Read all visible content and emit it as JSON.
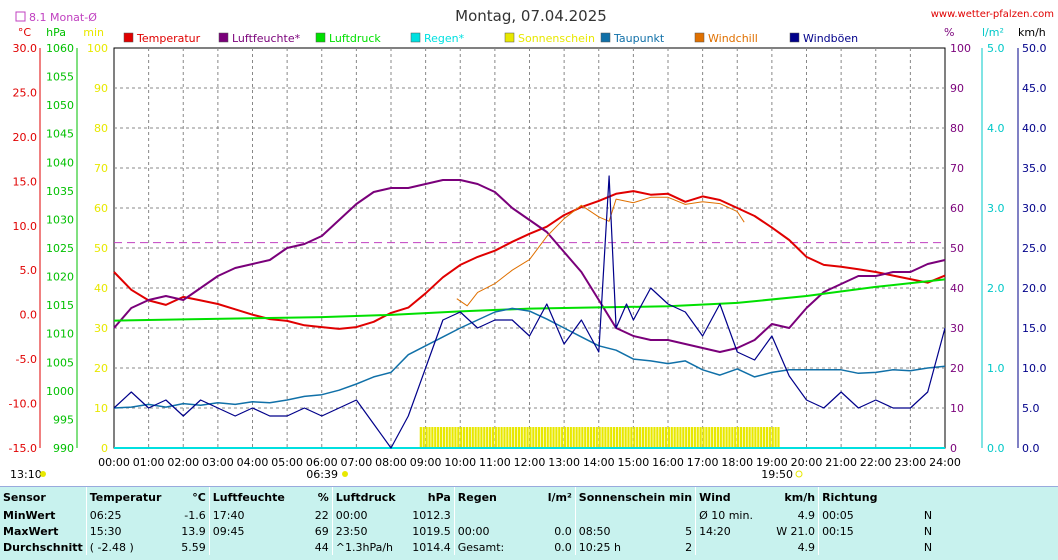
{
  "header": {
    "title": "Montag, 07.04.2025",
    "site": "www.wetter-pfalzen.com",
    "avg_label": "8.1 Monat-Ø",
    "time_left": "13:10",
    "sunrise": "06:39",
    "sunset": "19:50"
  },
  "axes": {
    "left_units": [
      "°C",
      "hPa",
      "min"
    ],
    "right_units": [
      "%",
      "l/m²",
      "km/h"
    ],
    "temp_ticks": [
      "30.0",
      "25.0",
      "20.0",
      "15.0",
      "10.0",
      "5.0",
      "0.0",
      "-5.0",
      "-10.0",
      "-15.0"
    ],
    "hpa_ticks": [
      "1060",
      "1055",
      "1050",
      "1045",
      "1040",
      "1035",
      "1030",
      "1025",
      "1020",
      "1015",
      "1010",
      "1005",
      "1000",
      "995",
      "990"
    ],
    "min_ticks": [
      "100",
      "90",
      "80",
      "70",
      "60",
      "50",
      "40",
      "30",
      "20",
      "10",
      "0"
    ],
    "pct_ticks": [
      "100",
      "90",
      "80",
      "70",
      "60",
      "50",
      "40",
      "30",
      "20",
      "10",
      "0"
    ],
    "rain_ticks": [
      "5.0",
      "4.0",
      "3.0",
      "2.0",
      "1.0",
      "0.0"
    ],
    "wind_ticks": [
      "50.0",
      "45.0",
      "40.0",
      "35.0",
      "30.0",
      "25.0",
      "20.0",
      "15.0",
      "10.0",
      "5.0",
      "0.0"
    ],
    "time_ticks": [
      "00:00",
      "01:00",
      "02:00",
      "03:00",
      "04:00",
      "05:00",
      "06:00",
      "07:00",
      "08:00",
      "09:00",
      "10:00",
      "11:00",
      "12:00",
      "13:00",
      "14:00",
      "15:00",
      "16:00",
      "17:00",
      "18:00",
      "19:00",
      "20:00",
      "21:00",
      "22:00",
      "23:00",
      "24:00"
    ]
  },
  "legend": [
    {
      "label": "Temperatur",
      "color": "#e00000"
    },
    {
      "label": "Luftfeuchte*",
      "color": "#7a007a"
    },
    {
      "label": "Luftdruck",
      "color": "#00e000"
    },
    {
      "label": "Regen*",
      "color": "#00e0e0"
    },
    {
      "label": "Sonnenschein",
      "color": "#e8e800"
    },
    {
      "label": "Taupunkt",
      "color": "#1070a8"
    },
    {
      "label": "Windchill",
      "color": "#e07000"
    },
    {
      "label": "Windböen",
      "color": "#00008a"
    }
  ],
  "chart_data": {
    "type": "line",
    "title": "Montag, 07.04.2025",
    "x_unit": "hour of day",
    "xlim": [
      0,
      24
    ],
    "temp_ylim": [
      -15,
      30
    ],
    "month_avg_temp": 8.1,
    "series": [
      {
        "name": "Temperatur",
        "unit": "°C",
        "color": "#e00000",
        "x": [
          0,
          0.5,
          1,
          1.5,
          2,
          2.5,
          3,
          3.5,
          4,
          4.5,
          5,
          5.5,
          6,
          6.5,
          7,
          7.5,
          8,
          8.5,
          9,
          9.5,
          10,
          10.5,
          11,
          11.5,
          12,
          12.5,
          13,
          13.5,
          14,
          14.5,
          15,
          15.5,
          16,
          16.5,
          17,
          17.5,
          18,
          18.5,
          19,
          19.5,
          20,
          20.5,
          21,
          21.5,
          22,
          22.5,
          23,
          23.5,
          24
        ],
        "y": [
          4.8,
          2.8,
          1.6,
          1.1,
          2.0,
          1.6,
          1.2,
          0.6,
          0.0,
          -0.5,
          -0.7,
          -1.2,
          -1.4,
          -1.6,
          -1.4,
          -0.8,
          0.2,
          0.8,
          2.4,
          4.2,
          5.6,
          6.5,
          7.2,
          8.2,
          9.1,
          9.9,
          11.2,
          12.1,
          12.8,
          13.6,
          13.9,
          13.5,
          13.6,
          12.7,
          13.3,
          12.9,
          12.0,
          11.1,
          9.8,
          8.4,
          6.5,
          5.6,
          5.4,
          5.1,
          4.8,
          4.4,
          4.0,
          3.6,
          4.4
        ]
      },
      {
        "name": "Luftfeuchte*",
        "unit": "%",
        "color": "#7a007a",
        "x": [
          0,
          0.5,
          1,
          1.5,
          2,
          2.5,
          3,
          3.5,
          4,
          4.5,
          5,
          5.5,
          6,
          6.5,
          7,
          7.5,
          8,
          8.5,
          9,
          9.5,
          10,
          10.5,
          11,
          11.5,
          12,
          12.5,
          13,
          13.5,
          14,
          14.5,
          15,
          15.5,
          16,
          16.5,
          17,
          17.5,
          18,
          18.5,
          19,
          19.5,
          20,
          20.5,
          21,
          21.5,
          22,
          22.5,
          23,
          23.5,
          24
        ],
        "y": [
          30,
          35,
          37,
          38,
          37,
          40,
          43,
          45,
          46,
          47,
          50,
          51,
          53,
          57,
          61,
          64,
          65,
          65,
          66,
          67,
          67,
          66,
          64,
          60,
          57,
          54,
          49,
          44,
          37,
          30,
          28,
          27,
          27,
          26,
          25,
          24,
          25,
          27,
          31,
          30,
          35,
          39,
          41,
          43,
          43,
          44,
          44,
          46,
          47
        ]
      },
      {
        "name": "Luftdruck",
        "unit": "hPa",
        "color": "#00e000",
        "x": [
          0,
          2,
          4,
          6,
          8,
          10,
          12,
          14,
          16,
          18,
          20,
          22,
          24
        ],
        "y": [
          1012.3,
          1012.5,
          1012.7,
          1012.9,
          1013.3,
          1013.9,
          1014.4,
          1014.6,
          1014.8,
          1015.4,
          1016.6,
          1018.2,
          1019.5
        ]
      },
      {
        "name": "Regen*",
        "unit": "l/m²",
        "color": "#00e0e0",
        "x": [
          0,
          24
        ],
        "y": [
          0.0,
          0.0
        ]
      },
      {
        "name": "Taupunkt",
        "unit": "°C",
        "color": "#1070a8",
        "x": [
          0,
          0.5,
          1,
          1.5,
          2,
          2.5,
          3,
          3.5,
          4,
          4.5,
          5,
          5.5,
          6,
          6.5,
          7,
          7.5,
          8,
          8.5,
          9,
          9.5,
          10,
          10.5,
          11,
          11.5,
          12,
          12.5,
          13,
          13.5,
          14,
          14.5,
          15,
          15.5,
          16,
          16.5,
          17,
          17.5,
          18,
          18.5,
          19,
          19.5,
          20,
          20.5,
          21,
          21.5,
          22,
          22.5,
          23,
          23.5,
          24
        ],
        "y": [
          -10.5,
          -10.4,
          -10.1,
          -10.4,
          -10.0,
          -10.2,
          -9.9,
          -10.1,
          -9.8,
          -9.9,
          -9.6,
          -9.2,
          -9.0,
          -8.5,
          -7.8,
          -7.0,
          -6.5,
          -4.5,
          -3.5,
          -2.5,
          -1.5,
          -0.6,
          0.3,
          0.7,
          0.4,
          -0.5,
          -1.5,
          -2.5,
          -3.5,
          -4.0,
          -5.0,
          -5.2,
          -5.5,
          -5.2,
          -6.2,
          -6.8,
          -6.1,
          -7.0,
          -6.5,
          -6.2,
          -6.2,
          -6.2,
          -6.2,
          -6.6,
          -6.5,
          -6.2,
          -6.3,
          -6.0,
          -5.8
        ]
      },
      {
        "name": "Windchill",
        "unit": "°C",
        "color": "#e07000",
        "x": [
          9.9,
          10.2,
          10.5,
          11,
          11.5,
          12,
          12.5,
          13,
          13.5,
          14,
          14.3,
          14.5,
          15,
          15.5,
          16,
          16.5,
          17,
          17.5,
          18,
          18.2
        ],
        "y": [
          1.8,
          1.0,
          2.5,
          3.5,
          5.0,
          6.2,
          8.8,
          10.8,
          12.3,
          11.0,
          10.5,
          13.0,
          12.6,
          13.2,
          13.2,
          12.4,
          12.7,
          12.5,
          11.6,
          10.4
        ]
      },
      {
        "name": "Windböen",
        "unit": "km/h",
        "color": "#00008a",
        "x": [
          0,
          0.5,
          1,
          1.5,
          2,
          2.5,
          3,
          3.5,
          4,
          4.5,
          5,
          5.5,
          6,
          6.5,
          7,
          7.5,
          8,
          8.5,
          9,
          9.5,
          10,
          10.5,
          11,
          11.5,
          12,
          12.5,
          13,
          13.5,
          14,
          14.3,
          14.5,
          14.8,
          15,
          15.5,
          16,
          16.5,
          17,
          17.5,
          18,
          18.5,
          19,
          19.5,
          20,
          20.5,
          21,
          21.5,
          22,
          22.5,
          23,
          23.5,
          24
        ],
        "y": [
          5,
          7,
          5,
          6,
          4,
          6,
          5,
          4,
          5,
          4,
          4,
          5,
          4,
          5,
          6,
          3,
          0,
          4,
          10,
          16,
          17,
          15,
          16,
          16,
          14,
          18,
          13,
          16,
          12,
          34,
          15,
          18,
          16,
          20,
          18,
          17,
          14,
          18,
          12,
          11,
          14,
          9,
          6,
          5,
          7,
          5,
          6,
          5,
          5,
          7,
          15
        ]
      }
    ],
    "sunshine_span": [
      8.83,
      19.2
    ],
    "grid": true
  },
  "stats": {
    "headers": [
      "Sensor",
      "Temperatur",
      "°C",
      "Luftfeuchte",
      "%",
      "Luftdruck",
      "hPa",
      "Regen",
      "l/m²",
      "Sonnenschein min",
      "Wind",
      "km/h",
      "Richtung"
    ],
    "rows": [
      {
        "label": "MinWert",
        "t_time": "06:25",
        "t_val": "-1.6",
        "h_time": "17:40",
        "h_val": "22",
        "p_time": "00:00",
        "p_val": "1012.3",
        "r_time": "",
        "r_val": "",
        "s_time": "",
        "s_val": "",
        "w_time": "Ø 10 min.",
        "w_val": "4.9",
        "d_time": "00:05",
        "d_val": "N"
      },
      {
        "label": "MaxWert",
        "t_time": "15:30",
        "t_val": "13.9",
        "h_time": "09:45",
        "h_val": "69",
        "p_time": "23:50",
        "p_val": "1019.5",
        "r_time": "00:00",
        "r_val": "0.0",
        "s_time": "08:50",
        "s_val": "5",
        "w_time": "14:20",
        "w_val": "W 21.0",
        "d_time": "00:15",
        "d_val": "N"
      },
      {
        "label": "Durchschnitt",
        "t_time": "( -2.48 )",
        "t_val": "5.59",
        "h_time": "",
        "h_val": "44",
        "p_time": "^1.3hPa/h",
        "p_val": "1014.4",
        "r_time": "Gesamt:",
        "r_val": "0.0",
        "s_time": "10:25 h",
        "s_val": "2",
        "w_time": "",
        "w_val": "4.9",
        "d_time": "",
        "d_val": "N"
      }
    ]
  }
}
